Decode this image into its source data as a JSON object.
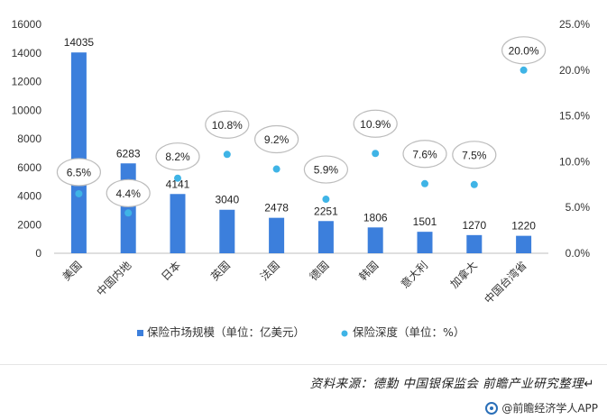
{
  "chart_data": {
    "type": "bar+scatter",
    "categories": [
      "美国",
      "中国内地",
      "日本",
      "英国",
      "法国",
      "德国",
      "韩国",
      "意大利",
      "加拿大",
      "中国台湾省"
    ],
    "series": [
      {
        "name": "保险市场规模（单位：亿美元）",
        "kind": "bar",
        "axis": "left",
        "values": [
          14035,
          6283,
          4141,
          3040,
          2478,
          2251,
          1806,
          1501,
          1270,
          1220
        ],
        "labels": [
          "14035",
          "6283",
          "4141",
          "3040",
          "2478",
          "2251",
          "1806",
          "1501",
          "1270",
          "1220"
        ],
        "color": "#3c7fdc"
      },
      {
        "name": "保险深度（单位：%）",
        "kind": "scatter",
        "axis": "right",
        "values": [
          6.5,
          4.4,
          8.2,
          10.8,
          9.2,
          5.9,
          10.9,
          7.6,
          7.5,
          20.0
        ],
        "labels": [
          "6.5%",
          "4.4%",
          "8.2%",
          "10.8%",
          "9.2%",
          "5.9%",
          "10.9%",
          "7.6%",
          "7.5%",
          "20.0%"
        ],
        "color": "#3fb4e6"
      }
    ],
    "left_axis": {
      "ylim": [
        0,
        16000
      ],
      "ticks": [
        0,
        2000,
        4000,
        6000,
        8000,
        10000,
        12000,
        14000,
        16000
      ],
      "tick_labels": [
        "0",
        "2000",
        "4000",
        "6000",
        "8000",
        "10000",
        "12000",
        "14000",
        "16000"
      ]
    },
    "right_axis": {
      "ylim": [
        0,
        25
      ],
      "ticks": [
        0,
        5,
        10,
        15,
        20,
        25
      ],
      "tick_labels": [
        "0.0%",
        "5.0%",
        "10.0%",
        "15.0%",
        "20.0%",
        "25.0%"
      ]
    },
    "grid": false,
    "legend_position": "bottom"
  },
  "footer": {
    "source": "资料来源：德勤 中国银保监会 前瞻产业研究整理↵",
    "brand": "@前瞻经济学人APP"
  }
}
